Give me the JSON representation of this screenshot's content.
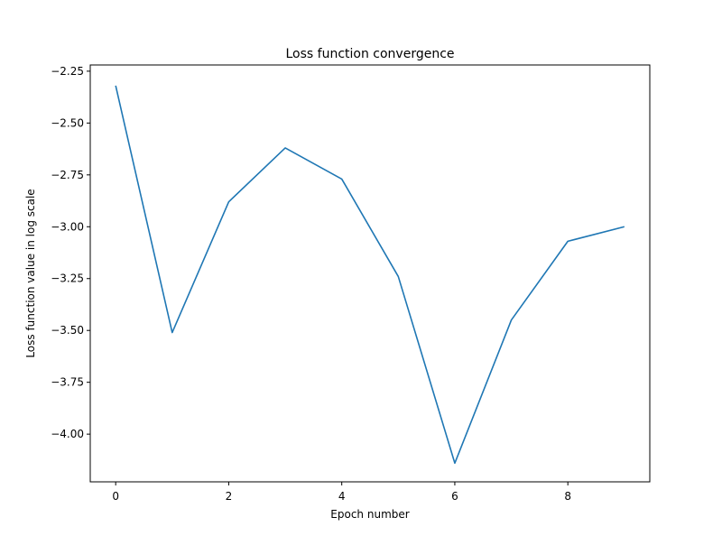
{
  "chart_data": {
    "type": "line",
    "title": "Loss function convergence",
    "xlabel": "Epoch number",
    "ylabel": "Loss function value in log scale",
    "xlim": [
      -0.45,
      9.45
    ],
    "ylim": [
      -4.23,
      -2.22
    ],
    "grid": false,
    "x_ticks": [
      0,
      2,
      4,
      6,
      8
    ],
    "x_tick_labels": [
      "0",
      "2",
      "4",
      "6",
      "8"
    ],
    "y_ticks": [
      -2.25,
      -2.5,
      -2.75,
      -3.0,
      -3.25,
      -3.5,
      -3.75,
      -4.0
    ],
    "y_tick_labels": [
      "−2.25",
      "−2.50",
      "−2.75",
      "−3.00",
      "−3.25",
      "−3.50",
      "−3.75",
      "−4.00"
    ],
    "series": [
      {
        "color": "#1f77b4",
        "x": [
          0,
          1,
          2,
          3,
          4,
          5,
          6,
          7,
          8,
          9
        ],
        "y": [
          -2.32,
          -3.51,
          -2.88,
          -2.62,
          -2.77,
          -3.24,
          -4.14,
          -3.45,
          -3.07,
          -3.0
        ]
      }
    ]
  }
}
